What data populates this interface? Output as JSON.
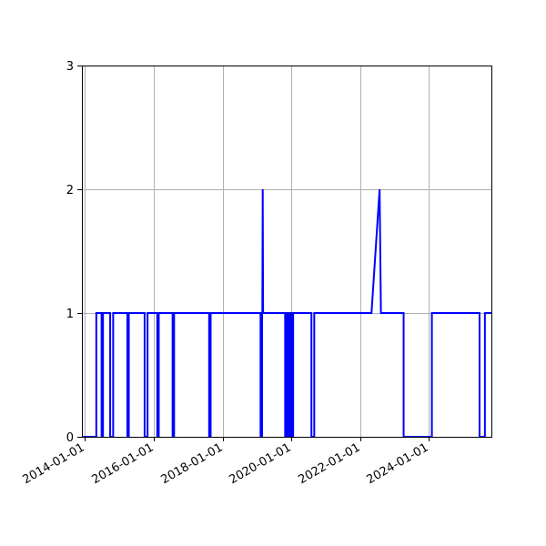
{
  "chart_data": {
    "type": "line",
    "title": "",
    "xlabel": "",
    "ylabel": "",
    "grid": true,
    "xlim": [
      "2013-11-29",
      "2025-10-25"
    ],
    "ylim": [
      0,
      3
    ],
    "x_ticks": [
      "2014-01-01",
      "2016-01-01",
      "2018-01-01",
      "2020-01-01",
      "2022-01-01",
      "2024-01-01"
    ],
    "y_ticks": [
      0,
      1,
      2,
      3
    ],
    "series": [
      {
        "color": "#0000ff",
        "points": [
          [
            "2013-11-29",
            0
          ],
          [
            "2014-05-01",
            0
          ],
          [
            "2014-05-01",
            1
          ],
          [
            "2014-06-26",
            1
          ],
          [
            "2014-06-26",
            0
          ],
          [
            "2014-07-11",
            0
          ],
          [
            "2014-07-11",
            1
          ],
          [
            "2014-09-25",
            1
          ],
          [
            "2014-09-25",
            0
          ],
          [
            "2014-10-27",
            0
          ],
          [
            "2014-10-27",
            1
          ],
          [
            "2015-03-27",
            1
          ],
          [
            "2015-03-27",
            0
          ],
          [
            "2015-04-11",
            0
          ],
          [
            "2015-04-11",
            1
          ],
          [
            "2015-09-26",
            1
          ],
          [
            "2015-09-26",
            0
          ],
          [
            "2015-10-27",
            0
          ],
          [
            "2015-10-27",
            1
          ],
          [
            "2016-02-07",
            1
          ],
          [
            "2016-02-07",
            0
          ],
          [
            "2016-02-23",
            0
          ],
          [
            "2016-02-23",
            1
          ],
          [
            "2016-07-19",
            1
          ],
          [
            "2016-07-19",
            0
          ],
          [
            "2016-08-04",
            0
          ],
          [
            "2016-08-04",
            1
          ],
          [
            "2017-08-11",
            1
          ],
          [
            "2017-08-11",
            0
          ],
          [
            "2017-08-27",
            0
          ],
          [
            "2017-08-27",
            1
          ],
          [
            "2019-02-08",
            1
          ],
          [
            "2019-02-08",
            0
          ],
          [
            "2019-02-24",
            0
          ],
          [
            "2019-02-24",
            1
          ],
          [
            "2019-02-27",
            1
          ],
          [
            "2019-03-03",
            2
          ],
          [
            "2019-03-07",
            1
          ],
          [
            "2019-10-27",
            1
          ],
          [
            "2019-10-27",
            0
          ],
          [
            "2019-11-13",
            0
          ],
          [
            "2019-11-13",
            1
          ],
          [
            "2019-11-29",
            1
          ],
          [
            "2019-11-29",
            0
          ],
          [
            "2019-12-16",
            0
          ],
          [
            "2019-12-16",
            1
          ],
          [
            "2020-01-02",
            1
          ],
          [
            "2020-01-02",
            0
          ],
          [
            "2020-01-20",
            0
          ],
          [
            "2020-01-20",
            1
          ],
          [
            "2020-08-01",
            1
          ],
          [
            "2020-08-01",
            0
          ],
          [
            "2020-08-31",
            0
          ],
          [
            "2020-08-31",
            1
          ],
          [
            "2022-05-01",
            1
          ],
          [
            "2022-07-26",
            2
          ],
          [
            "2022-08-09",
            1
          ],
          [
            "2023-04-07",
            1
          ],
          [
            "2023-04-07",
            0
          ],
          [
            "2024-02-01",
            0
          ],
          [
            "2024-02-01",
            1
          ],
          [
            "2025-06-21",
            1
          ],
          [
            "2025-06-21",
            0
          ],
          [
            "2025-08-17",
            0
          ],
          [
            "2025-08-17",
            1
          ],
          [
            "2025-10-25",
            1
          ]
        ]
      }
    ]
  }
}
